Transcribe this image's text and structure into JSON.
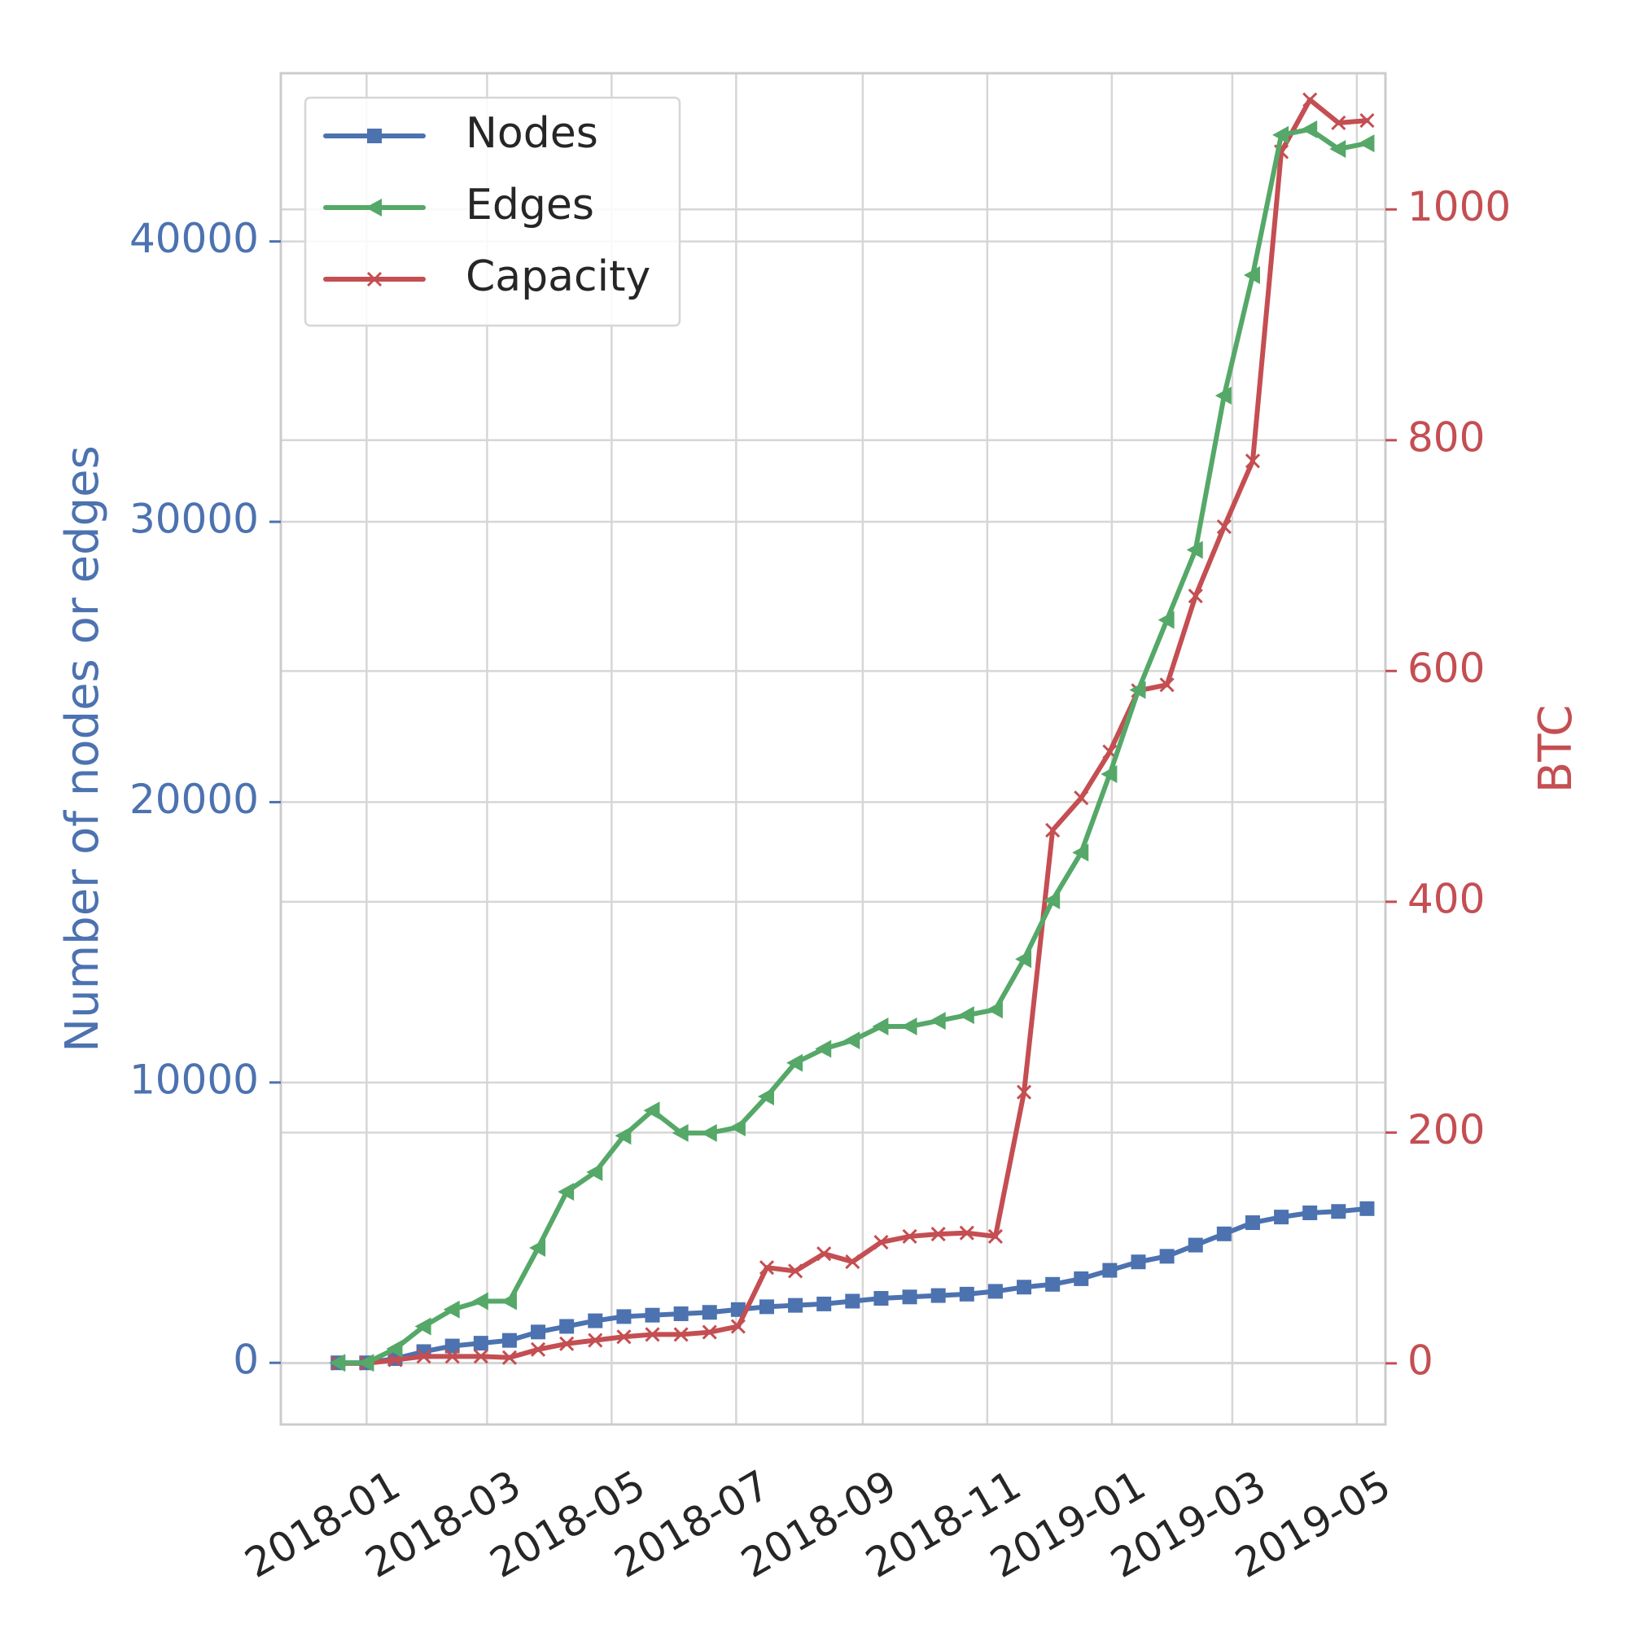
{
  "chart_data": {
    "type": "line",
    "x_axis": {
      "ticks": [
        "2018-01",
        "2018-03",
        "2018-05",
        "2018-07",
        "2018-09",
        "2018-11",
        "2019-01",
        "2019-03",
        "2019-05"
      ],
      "range": [
        "2017-11-20",
        "2019-05-15"
      ]
    },
    "y_left": {
      "label": "Number of nodes or edges",
      "ticks": [
        0,
        10000,
        20000,
        30000,
        40000
      ],
      "range": [
        -2200,
        46000
      ],
      "color": "#4c72b0"
    },
    "y_right": {
      "label": "BTC",
      "ticks": [
        0,
        200,
        400,
        600,
        800,
        1000
      ],
      "range": [
        -53,
        1118
      ],
      "color": "#c44e52"
    },
    "grid": true,
    "legend": "top-left",
    "x": [
      "2017-12-18",
      "2018-01-01",
      "2018-01-15",
      "2018-01-29",
      "2018-02-12",
      "2018-02-26",
      "2018-03-12",
      "2018-03-26",
      "2018-04-09",
      "2018-04-23",
      "2018-05-07",
      "2018-05-21",
      "2018-06-04",
      "2018-06-18",
      "2018-07-02",
      "2018-07-16",
      "2018-07-30",
      "2018-08-13",
      "2018-08-27",
      "2018-09-10",
      "2018-09-24",
      "2018-10-08",
      "2018-10-22",
      "2018-11-05",
      "2018-11-19",
      "2018-12-03",
      "2018-12-17",
      "2018-12-31",
      "2019-01-14",
      "2019-01-28",
      "2019-02-11",
      "2019-02-25",
      "2019-03-11",
      "2019-03-25",
      "2019-04-08",
      "2019-04-22",
      "2019-05-06"
    ],
    "series": [
      {
        "name": "Nodes",
        "axis": "left",
        "color": "#4c72b0",
        "marker": "square",
        "values": [
          0,
          0,
          150,
          400,
          600,
          700,
          800,
          1100,
          1300,
          1500,
          1650,
          1700,
          1750,
          1800,
          1900,
          2000,
          2050,
          2100,
          2200,
          2300,
          2350,
          2400,
          2450,
          2550,
          2700,
          2800,
          3000,
          3300,
          3600,
          3800,
          4200,
          4600,
          5000,
          5200,
          5350,
          5400,
          5500
        ]
      },
      {
        "name": "Edges",
        "axis": "left",
        "color": "#55a868",
        "marker": "triangle-left",
        "values": [
          0,
          0,
          500,
          1300,
          1900,
          2200,
          2200,
          4100,
          6100,
          6800,
          8100,
          9000,
          8200,
          8200,
          8400,
          9500,
          10700,
          11200,
          11500,
          12000,
          12000,
          12200,
          12400,
          12600,
          14400,
          16500,
          18200,
          21000,
          24000,
          26500,
          29000,
          34500,
          38800,
          43800,
          44000,
          43300,
          43500
        ]
      },
      {
        "name": "Capacity",
        "axis": "right",
        "color": "#c44e52",
        "marker": "x",
        "values": [
          0,
          0,
          3,
          6,
          6,
          6,
          5,
          12,
          17,
          20,
          23,
          25,
          25,
          27,
          32,
          83,
          80,
          95,
          88,
          105,
          110,
          112,
          113,
          110,
          235,
          462,
          490,
          530,
          583,
          588,
          665,
          725,
          782,
          1050,
          1095,
          1075,
          1077
        ]
      }
    ]
  }
}
